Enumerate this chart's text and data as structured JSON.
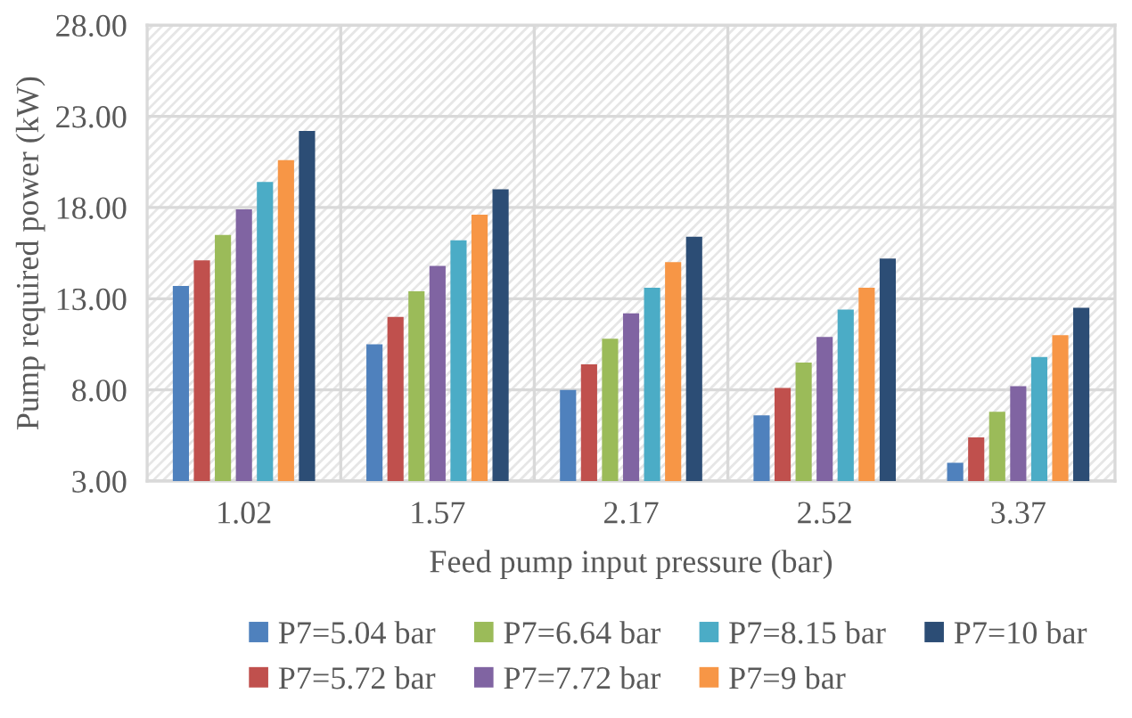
{
  "chart_data": {
    "type": "bar",
    "xlabel": "Feed pump input pressure (bar)",
    "ylabel": "Pump required power (kW)",
    "categories": [
      "1.02",
      "1.57",
      "2.17",
      "2.52",
      "3.37"
    ],
    "series": [
      {
        "name": "P7=5.04 bar",
        "color": "#4f81bd",
        "values": [
          13.7,
          10.5,
          8.0,
          6.6,
          4.0
        ]
      },
      {
        "name": "P7=5.72 bar",
        "color": "#c0504d",
        "values": [
          15.1,
          12.0,
          9.4,
          8.1,
          5.4
        ]
      },
      {
        "name": "P7=6.64 bar",
        "color": "#9bbb59",
        "values": [
          16.5,
          13.4,
          10.8,
          9.5,
          6.8
        ]
      },
      {
        "name": "P7=7.72 bar",
        "color": "#8064a2",
        "values": [
          17.9,
          14.8,
          12.2,
          10.9,
          8.2
        ]
      },
      {
        "name": "P7=8.15 bar",
        "color": "#4bacc6",
        "values": [
          19.4,
          16.2,
          13.6,
          12.4,
          9.8
        ]
      },
      {
        "name": "P7=9 bar",
        "color": "#f79646",
        "values": [
          20.6,
          17.6,
          15.0,
          13.6,
          11.0
        ]
      },
      {
        "name": "P7=10 bar",
        "color": "#2c4d75",
        "values": [
          22.2,
          19.0,
          16.4,
          15.2,
          12.5
        ]
      }
    ],
    "ylim": [
      3,
      28
    ],
    "yticks": [
      {
        "value": 3,
        "label": "3.00"
      },
      {
        "value": 8,
        "label": "8.00"
      },
      {
        "value": 13,
        "label": "13.00"
      },
      {
        "value": 18,
        "label": "18.00"
      },
      {
        "value": 23,
        "label": "23.00"
      },
      {
        "value": 28,
        "label": "28.00"
      }
    ],
    "grid": true,
    "legend": "bottom"
  }
}
